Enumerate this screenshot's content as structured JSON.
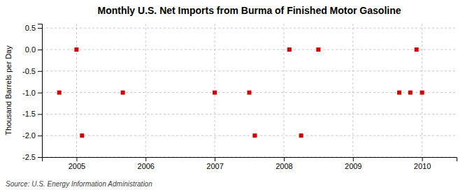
{
  "chart_data": {
    "type": "scatter",
    "title": "Monthly U.S. Net Imports from Burma of Finished Motor Gasoline",
    "ylabel": "Thousand Barrels per Day",
    "source": "Source: U.S. Energy Information Administration",
    "x": [
      2004.75,
      2005.0,
      2005.08,
      2005.67,
      2007.0,
      2007.5,
      2007.58,
      2008.08,
      2008.25,
      2008.5,
      2009.67,
      2009.83,
      2009.92,
      2010.0
    ],
    "values": [
      -1.0,
      0.0,
      -2.0,
      -1.0,
      -1.0,
      -1.0,
      -2.0,
      0.0,
      -2.0,
      0.0,
      -1.0,
      -1.0,
      0.0,
      -1.0
    ],
    "color": "#cc0000",
    "marker": "square",
    "xlim": [
      2004.5,
      2010.5
    ],
    "ylim": [
      -2.5,
      0.6
    ],
    "xticks": [
      2005,
      2006,
      2007,
      2008,
      2009,
      2010
    ],
    "yticks": [
      0.5,
      {
        "value": 0,
        "label": "0.0"
      },
      -0.5,
      {
        "value": -1,
        "label": "-1.0"
      },
      -1.5,
      {
        "value": -2,
        "label": "-2.0"
      },
      -2.5
    ],
    "grid": true
  }
}
